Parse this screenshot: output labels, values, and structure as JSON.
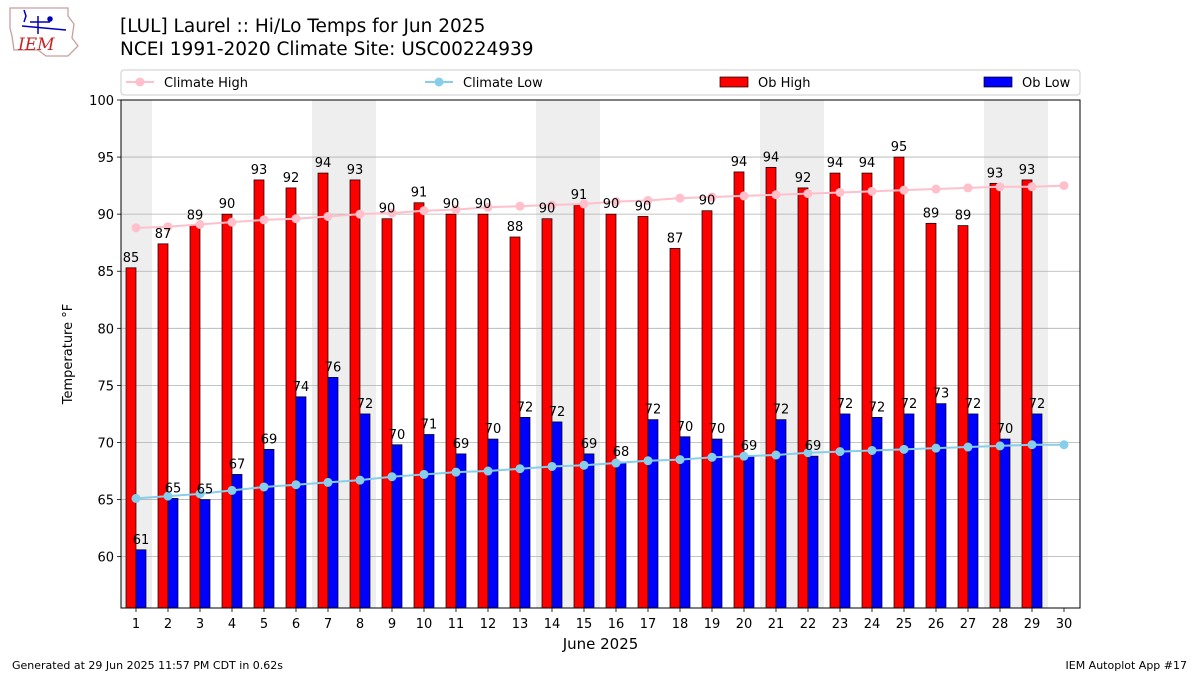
{
  "header": {
    "title_line1": "[LUL] Laurel :: Hi/Lo Temps for Jun 2025",
    "title_line2": "NCEI 1991-2020 Climate Site: USC00224939",
    "logo_text": "IEM"
  },
  "footer": {
    "generated": "Generated at 29 Jun 2025 11:57 PM CDT in 0.62s",
    "app": "IEM Autoplot App #17"
  },
  "colors": {
    "ob_high": "#ff0000",
    "ob_low": "#0000ff",
    "climate_high": "#ffc0cb",
    "climate_low": "#87ceeb",
    "weekend_band": "#eeeeee",
    "grid": "#b0b0b0"
  },
  "chart_data": {
    "type": "bar",
    "xlabel": "June 2025",
    "ylabel": "Temperature °F",
    "ylim": [
      55.5,
      100
    ],
    "yticks": [
      60,
      65,
      70,
      75,
      80,
      85,
      90,
      95,
      100
    ],
    "grid": true,
    "legend_position": "top",
    "categories": [
      "1",
      "2",
      "3",
      "4",
      "5",
      "6",
      "7",
      "8",
      "9",
      "10",
      "11",
      "12",
      "13",
      "14",
      "15",
      "16",
      "17",
      "18",
      "19",
      "20",
      "21",
      "22",
      "23",
      "24",
      "25",
      "26",
      "27",
      "28",
      "29",
      "30"
    ],
    "weekend_days": [
      1,
      7,
      8,
      14,
      15,
      21,
      22,
      28,
      29
    ],
    "series": [
      {
        "name": "Climate High",
        "kind": "line",
        "values": [
          88.8,
          88.9,
          89.1,
          89.3,
          89.5,
          89.6,
          89.8,
          90.0,
          90.1,
          90.3,
          90.4,
          90.6,
          90.7,
          90.8,
          90.9,
          91.1,
          91.2,
          91.4,
          91.5,
          91.6,
          91.7,
          91.8,
          91.9,
          92.0,
          92.1,
          92.2,
          92.3,
          92.4,
          92.4,
          92.5
        ]
      },
      {
        "name": "Climate Low",
        "kind": "line",
        "values": [
          65.1,
          65.3,
          65.5,
          65.8,
          66.1,
          66.3,
          66.5,
          66.7,
          67.0,
          67.2,
          67.4,
          67.5,
          67.7,
          67.9,
          68.0,
          68.2,
          68.4,
          68.5,
          68.7,
          68.8,
          68.9,
          69.1,
          69.2,
          69.3,
          69.4,
          69.5,
          69.6,
          69.7,
          69.8,
          69.8
        ]
      },
      {
        "name": "Ob High",
        "kind": "bar",
        "values": [
          85.3,
          87.4,
          89.0,
          90.0,
          93.0,
          92.3,
          93.6,
          93.0,
          89.6,
          91.0,
          90.0,
          90.0,
          88.0,
          89.6,
          90.8,
          90.0,
          89.8,
          87.0,
          90.3,
          93.7,
          94.1,
          92.3,
          93.6,
          93.6,
          95.0,
          89.2,
          89.0,
          92.7,
          93.0,
          null
        ],
        "labels": [
          "85",
          "87",
          "89",
          "90",
          "93",
          "92",
          "94",
          "93",
          "90",
          "91",
          "90",
          "90",
          "88",
          "90",
          "91",
          "90",
          "90",
          "87",
          "90",
          "94",
          "94",
          "92",
          "94",
          "94",
          "95",
          "89",
          "89",
          "93",
          "93",
          ""
        ]
      },
      {
        "name": "Ob Low",
        "kind": "bar",
        "values": [
          60.6,
          65.1,
          65.0,
          67.2,
          69.4,
          74.0,
          75.7,
          72.5,
          69.8,
          70.7,
          69.0,
          70.3,
          72.2,
          71.8,
          69.0,
          68.3,
          72.0,
          70.5,
          70.3,
          68.8,
          72.0,
          68.8,
          72.5,
          72.2,
          72.5,
          73.4,
          72.5,
          70.3,
          72.5,
          null
        ],
        "labels": [
          "61",
          "65",
          "65",
          "67",
          "69",
          "74",
          "76",
          "72",
          "70",
          "71",
          "69",
          "70",
          "72",
          "72",
          "69",
          "68",
          "72",
          "70",
          "70",
          "69",
          "72",
          "69",
          "72",
          "72",
          "72",
          "73",
          "72",
          "70",
          "72",
          ""
        ]
      }
    ]
  }
}
